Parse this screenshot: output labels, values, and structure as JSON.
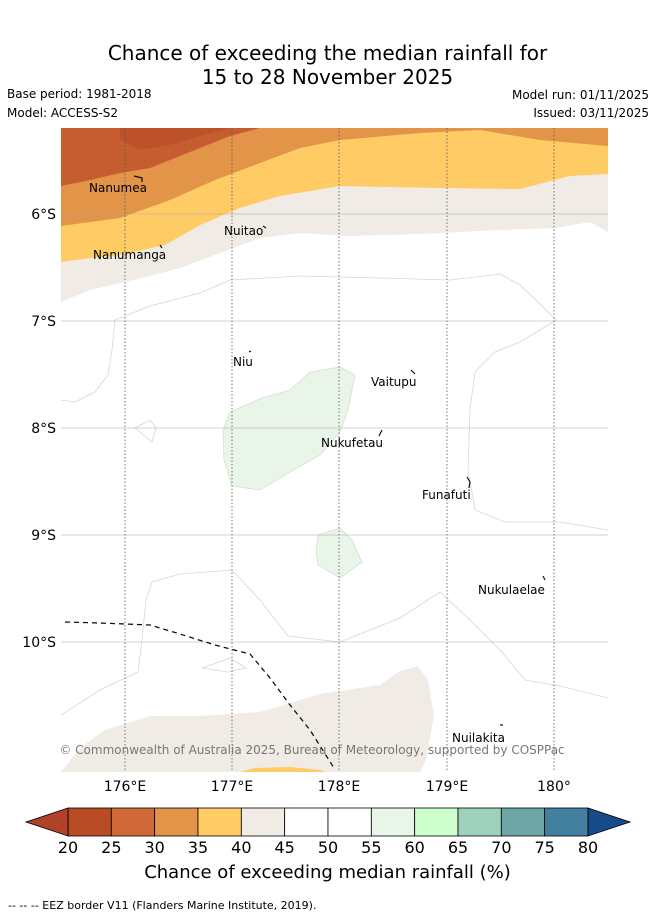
{
  "title": {
    "line1": "Chance of exceeding the median rainfall for",
    "line2": "15 to 28 November 2025"
  },
  "meta": {
    "base_period": "Base period: 1981-2018",
    "model": "Model: ACCESS-S2",
    "model_run": "Model run: 01/11/2025",
    "issued": "Issued: 03/11/2025"
  },
  "map": {
    "lon_labels": [
      "176°E",
      "177°E",
      "178°E",
      "179°E",
      "180°"
    ],
    "lat_labels": [
      "6°S",
      "7°S",
      "8°S",
      "9°S",
      "10°S"
    ],
    "places": [
      {
        "name": "Nanumea"
      },
      {
        "name": "Nuitao"
      },
      {
        "name": "Nanumanga"
      },
      {
        "name": "Niu"
      },
      {
        "name": "Vaitupu"
      },
      {
        "name": "Nukufetau"
      },
      {
        "name": "Funafuti"
      },
      {
        "name": "Nukulaelae"
      },
      {
        "name": "Nuilakita"
      }
    ],
    "copyright": "© Commonwealth of Australia 2025, Bureau of Meteorology, supported by COSPPac"
  },
  "colorbar": {
    "ticks": [
      "20",
      "25",
      "30",
      "35",
      "40",
      "45",
      "50",
      "55",
      "60",
      "65",
      "70",
      "75",
      "80"
    ],
    "colors": [
      "#b84a24",
      "#d0693a",
      "#e29448",
      "#fecb64",
      "#f0ebe5",
      "#ffffff",
      "#ffffff",
      "#e9f5e9",
      "#ccffcc",
      "#9dd1bb",
      "#6ea6a5",
      "#4380a0",
      "#1b4f8a"
    ],
    "low_color": "#b2412a",
    "high_color": "#174a88",
    "label": "Chance of exceeding median rainfall (%)"
  },
  "footer": "--  --  -- EEZ border V11 (Flanders Marine Institute, 2019)."
}
